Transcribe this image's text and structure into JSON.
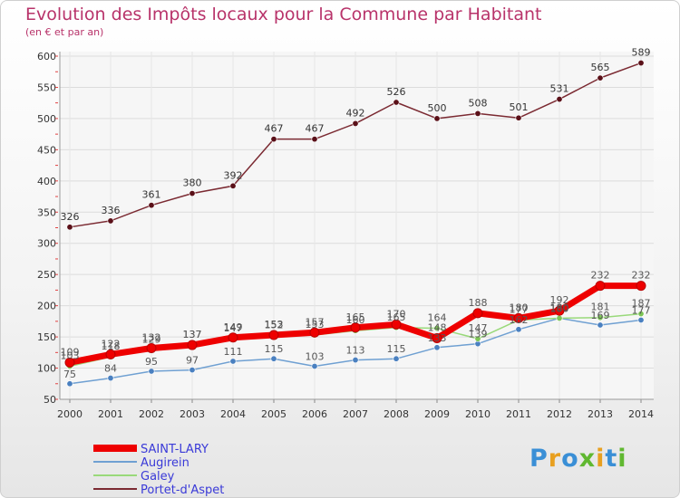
{
  "chart_data": {
    "type": "line",
    "title": "Evolution des Impôts locaux pour la Commune par Habitant",
    "subtitle": "(en € et par an)",
    "x": [
      "2000",
      "2001",
      "2002",
      "2003",
      "2004",
      "2005",
      "2006",
      "2007",
      "2008",
      "2009",
      "2010",
      "2011",
      "2012",
      "2013",
      "2014"
    ],
    "ylim": [
      50,
      600
    ],
    "yticks": [
      50,
      100,
      150,
      200,
      250,
      300,
      350,
      400,
      450,
      500,
      550,
      600
    ],
    "series": [
      {
        "name": "Portet-d'Aspet",
        "color": "#7b2a32",
        "marker": "#5a1018",
        "width": 1.5,
        "values": [
          326,
          336,
          361,
          380,
          392,
          467,
          467,
          492,
          526,
          500,
          508,
          501,
          531,
          565,
          589
        ]
      },
      {
        "name": "Augirein",
        "color": "#6fa0d2",
        "marker": "#4a80c0",
        "width": 1.5,
        "values": [
          75,
          84,
          95,
          97,
          111,
          115,
          103,
          113,
          115,
          133,
          139,
          162,
          180,
          169,
          177
        ]
      },
      {
        "name": "Galey",
        "color": "#99d97a",
        "marker": "#7cc455",
        "width": 1.5,
        "values": [
          103,
          118,
          129,
          137,
          147,
          152,
          153,
          160,
          165,
          164,
          147,
          177,
          180,
          181,
          187
        ]
      },
      {
        "name": "SAINT-LARY",
        "color": "#ee0000",
        "marker": "#ee0000",
        "width": 7,
        "values": [
          109,
          122,
          132,
          137,
          149,
          153,
          157,
          165,
          170,
          148,
          188,
          180,
          192,
          232,
          232
        ]
      }
    ],
    "legend": [
      "SAINT-LARY",
      "Augirein",
      "Galey",
      "Portet-d'Aspet"
    ],
    "legend_position": "bottom-left",
    "value_labels": [
      {
        "series": "Portet-d'Aspet",
        "values": [
          "326",
          "336",
          "361",
          "380",
          "392",
          "467",
          "467",
          "492",
          "526",
          "500",
          "508",
          "501",
          "531",
          "565",
          "589"
        ]
      },
      {
        "series": "Augirein",
        "values": [
          "75",
          "84",
          "95",
          "97",
          "111",
          "115",
          "103",
          "113",
          "115",
          "133",
          "139",
          "162",
          "180",
          "169",
          "177"
        ]
      },
      {
        "series": "Galey",
        "values": [
          "103",
          "118",
          "129",
          "137",
          "147",
          "152",
          "153",
          "160",
          "165",
          "164",
          "147",
          "177",
          "180",
          "181",
          "187"
        ]
      },
      {
        "series": "SAINT-LARY",
        "values": [
          "109",
          "122",
          "132",
          "137",
          "149",
          "153",
          "157",
          "165",
          "170",
          "148",
          "188",
          "180",
          "192",
          "232",
          "232"
        ]
      }
    ]
  },
  "logo": {
    "text": "Proxiti"
  }
}
